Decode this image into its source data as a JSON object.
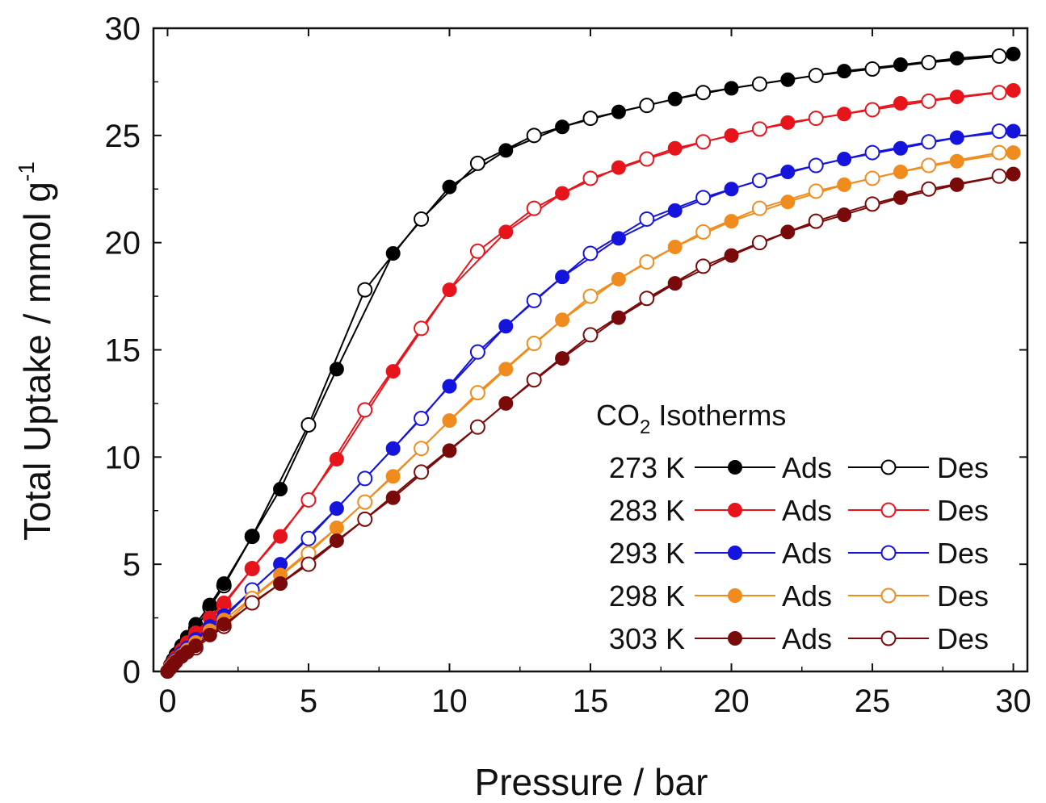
{
  "chart_data": {
    "type": "scatter",
    "title": "",
    "xlabel": "Pressure / bar",
    "ylabel": "Total Uptake / mmol g",
    "ylabel_sup": "-1",
    "xlim": [
      -0.5,
      30.5
    ],
    "ylim": [
      0,
      30
    ],
    "xticks": [
      0,
      5,
      10,
      15,
      20,
      25,
      30
    ],
    "yticks": [
      0,
      5,
      10,
      15,
      20,
      25,
      30
    ],
    "grid": false,
    "legend": {
      "placement": "bottom-right",
      "title_main": "CO",
      "title_sub": "2",
      "title_rest": " Isotherms",
      "ads_label": "Ads",
      "des_label": "Des"
    },
    "series": [
      {
        "label": "273 K",
        "color": "#000000",
        "ads": {
          "x": [
            0,
            0.1,
            0.2,
            0.3,
            0.5,
            0.7,
            1,
            1.5,
            2,
            3,
            4,
            6,
            8,
            10,
            12,
            14,
            16,
            18,
            20,
            22,
            24,
            26,
            28,
            30
          ],
          "y": [
            0,
            0.3,
            0.55,
            0.8,
            1.2,
            1.6,
            2.2,
            3.1,
            4.1,
            6.3,
            8.5,
            14.1,
            19.5,
            22.6,
            24.3,
            25.4,
            26.1,
            26.7,
            27.2,
            27.6,
            28.0,
            28.3,
            28.6,
            28.8
          ]
        },
        "des": {
          "x": [
            29.5,
            27,
            25,
            23,
            21,
            19,
            17,
            15,
            13,
            11,
            9,
            7,
            5,
            3,
            2,
            1.5,
            1,
            0.5,
            0.2
          ],
          "y": [
            28.7,
            28.4,
            28.1,
            27.8,
            27.4,
            27.0,
            26.4,
            25.8,
            25.0,
            23.7,
            21.1,
            17.8,
            11.5,
            6.3,
            4.0,
            3.0,
            2.0,
            1.1,
            0.5
          ]
        }
      },
      {
        "label": "283 K",
        "color": "#e8141c",
        "ads": {
          "x": [
            0,
            0.1,
            0.2,
            0.3,
            0.5,
            0.7,
            1,
            1.5,
            2,
            3,
            4,
            6,
            8,
            10,
            12,
            14,
            16,
            18,
            20,
            22,
            24,
            26,
            28,
            30
          ],
          "y": [
            0,
            0.25,
            0.45,
            0.65,
            1.0,
            1.35,
            1.8,
            2.5,
            3.2,
            4.8,
            6.3,
            9.9,
            14.0,
            17.8,
            20.5,
            22.3,
            23.5,
            24.4,
            25.0,
            25.6,
            26.0,
            26.5,
            26.8,
            27.1
          ]
        },
        "des": {
          "x": [
            29.5,
            27,
            25,
            23,
            21,
            19,
            17,
            15,
            13,
            11,
            9,
            7,
            5,
            3,
            2,
            1,
            0.5
          ],
          "y": [
            27.0,
            26.6,
            26.2,
            25.8,
            25.3,
            24.7,
            23.9,
            23.0,
            21.6,
            19.6,
            16.0,
            12.2,
            8.0,
            4.8,
            3.1,
            1.7,
            0.9
          ]
        }
      },
      {
        "label": "293 K",
        "color": "#1414dc",
        "ads": {
          "x": [
            0,
            0.1,
            0.2,
            0.3,
            0.5,
            0.7,
            1,
            1.5,
            2,
            4,
            6,
            8,
            10,
            12,
            14,
            16,
            18,
            20,
            22,
            24,
            26,
            28,
            30
          ],
          "y": [
            0,
            0.2,
            0.4,
            0.55,
            0.85,
            1.1,
            1.5,
            2.1,
            2.6,
            5.0,
            7.6,
            10.4,
            13.3,
            16.1,
            18.4,
            20.2,
            21.5,
            22.5,
            23.3,
            23.9,
            24.4,
            24.9,
            25.2
          ]
        },
        "des": {
          "x": [
            29.5,
            27,
            25,
            23,
            21,
            19,
            17,
            15,
            13,
            11,
            9,
            7,
            5,
            3,
            2,
            1,
            0.5
          ],
          "y": [
            25.2,
            24.7,
            24.2,
            23.6,
            22.9,
            22.1,
            21.1,
            19.5,
            17.3,
            14.9,
            11.8,
            9.0,
            6.2,
            3.8,
            2.5,
            1.4,
            0.8
          ]
        }
      },
      {
        "label": "298 K",
        "color": "#f08c1e",
        "ads": {
          "x": [
            0,
            0.1,
            0.2,
            0.3,
            0.5,
            0.7,
            1,
            1.5,
            2,
            4,
            6,
            8,
            10,
            12,
            14,
            16,
            18,
            20,
            22,
            24,
            26,
            28,
            30
          ],
          "y": [
            0,
            0.2,
            0.35,
            0.5,
            0.75,
            1.0,
            1.35,
            1.9,
            2.4,
            4.5,
            6.7,
            9.1,
            11.7,
            14.1,
            16.4,
            18.3,
            19.8,
            21.0,
            21.9,
            22.7,
            23.3,
            23.8,
            24.2
          ]
        },
        "des": {
          "x": [
            29.5,
            27,
            25,
            23,
            21,
            19,
            17,
            15,
            13,
            11,
            9,
            7,
            5,
            3,
            2,
            1
          ],
          "y": [
            24.2,
            23.6,
            23.0,
            22.4,
            21.6,
            20.5,
            19.1,
            17.5,
            15.3,
            13.0,
            10.4,
            7.9,
            5.5,
            3.4,
            2.2,
            1.2
          ]
        }
      },
      {
        "label": "303 K",
        "color": "#7a0a0a",
        "ads": {
          "x": [
            0,
            0.1,
            0.2,
            0.3,
            0.5,
            0.7,
            1,
            1.5,
            2,
            4,
            6,
            8,
            10,
            12,
            14,
            16,
            18,
            20,
            22,
            24,
            26,
            28,
            30
          ],
          "y": [
            0,
            0.15,
            0.3,
            0.45,
            0.7,
            0.9,
            1.2,
            1.7,
            2.2,
            4.1,
            6.1,
            8.1,
            10.3,
            12.5,
            14.6,
            16.5,
            18.1,
            19.4,
            20.5,
            21.3,
            22.1,
            22.7,
            23.2
          ]
        },
        "des": {
          "x": [
            29.5,
            27,
            25,
            23,
            21,
            19,
            17,
            15,
            13,
            11,
            9,
            7,
            5,
            3,
            2,
            1
          ],
          "y": [
            23.1,
            22.5,
            21.8,
            21.0,
            20.0,
            18.9,
            17.4,
            15.7,
            13.6,
            11.4,
            9.3,
            7.1,
            5.0,
            3.2,
            2.1,
            1.1
          ]
        }
      }
    ]
  }
}
